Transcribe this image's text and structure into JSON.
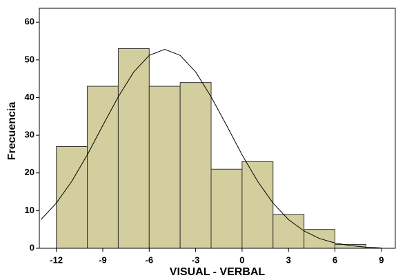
{
  "chart_data": {
    "type": "histogram",
    "x_label": "VISUAL - VERBAL",
    "y_label": "Frecuencia",
    "bins": [
      -12,
      -10,
      -8,
      -6,
      -4,
      -2,
      0,
      2,
      4,
      6,
      8
    ],
    "values": [
      27,
      43,
      53,
      43,
      44,
      21,
      23,
      9,
      5,
      1
    ],
    "color": "#d3ce9e",
    "edge_color": "#333333",
    "curve": {
      "color": "#000000",
      "x": [
        -13,
        -12,
        -11,
        -10,
        -9,
        -8,
        -7,
        -6,
        -5,
        -4,
        -3,
        -2,
        -1,
        0,
        1,
        2,
        3,
        4,
        5,
        6,
        7,
        8,
        9
      ],
      "values": [
        7.6,
        12.0,
        17.8,
        24.8,
        32.6,
        40.2,
        46.8,
        51.2,
        52.8,
        51.2,
        46.8,
        40.2,
        32.6,
        24.8,
        17.8,
        12.0,
        7.6,
        4.6,
        2.6,
        1.4,
        0.7,
        0.3,
        0.1
      ]
    },
    "xlim": [
      -13.1,
      9.9
    ],
    "xticks": [
      -12,
      -9,
      -6,
      -3,
      0,
      3,
      6,
      9
    ],
    "ylim": [
      0,
      63.7
    ],
    "yticks": [
      0,
      10,
      20,
      30,
      40,
      50,
      60
    ],
    "grid": false
  }
}
